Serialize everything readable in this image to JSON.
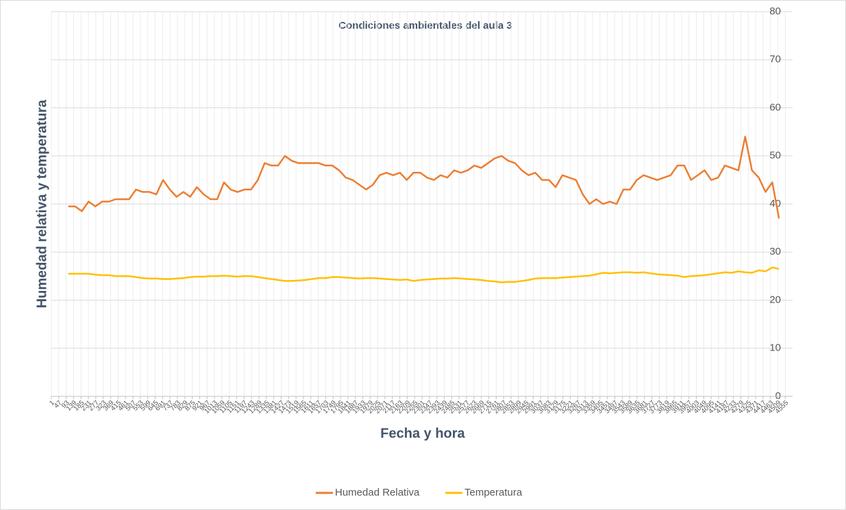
{
  "chart_data": {
    "type": "line",
    "title": "Condiciones ambientales del aula 3",
    "x_label": "Fecha y hora",
    "y_label": "Humedad relativa y temperatura",
    "x": [
      106,
      148,
      190,
      232,
      274,
      316,
      358,
      400,
      442,
      484,
      526,
      568,
      610,
      652,
      694,
      736,
      778,
      820,
      862,
      904,
      946,
      988,
      1030,
      1072,
      1114,
      1156,
      1198,
      1240,
      1282,
      1324,
      1366,
      1408,
      1450,
      1492,
      1534,
      1576,
      1618,
      1660,
      1702,
      1744,
      1786,
      1828,
      1870,
      1912,
      1954,
      1996,
      2038,
      2080,
      2122,
      2164,
      2206,
      2248,
      2290,
      2332,
      2374,
      2416,
      2458,
      2500,
      2542,
      2584,
      2626,
      2668,
      2710,
      2752,
      2794,
      2836,
      2878,
      2920,
      2962,
      3004,
      3046,
      3088,
      3130,
      3172,
      3214,
      3256,
      3298,
      3340,
      3382,
      3424,
      3466,
      3508,
      3550,
      3592,
      3634,
      3676,
      3718,
      3760,
      3802,
      3844,
      3886,
      3928,
      3970,
      4012,
      4054,
      4096,
      4138,
      4180,
      4222,
      4264,
      4306,
      4348,
      4390,
      4432,
      4474,
      4516
    ],
    "series": [
      {
        "name": "Humedad Relativa",
        "color": "#ed7d31",
        "values": [
          39.5,
          39.5,
          38.5,
          40.5,
          39.5,
          40.5,
          40.5,
          41,
          41,
          41,
          43,
          42.5,
          42.5,
          42,
          45,
          43,
          41.5,
          42.5,
          41.5,
          43.5,
          42,
          41,
          41,
          44.5,
          43,
          42.5,
          43,
          43,
          45,
          48.5,
          48,
          48,
          50,
          49,
          48.5,
          48.5,
          48.5,
          48.5,
          48,
          48,
          47,
          45.5,
          45,
          44,
          43,
          44,
          46,
          46.5,
          46,
          46.5,
          45,
          46.5,
          46.5,
          45.5,
          45,
          46,
          45.5,
          47,
          46.5,
          47,
          48,
          47.5,
          48.5,
          49.5,
          50,
          49,
          48.5,
          47,
          46,
          46.5,
          45,
          45,
          43.5,
          46,
          45.5,
          45,
          42,
          40,
          41,
          40,
          40.5,
          40,
          43,
          43,
          45,
          46,
          45.5,
          45,
          45.5,
          46,
          48,
          48,
          45,
          46,
          47,
          45,
          45.5,
          48,
          47.5,
          47,
          54,
          47,
          45.5,
          42.5,
          44.5,
          37
        ]
      },
      {
        "name": "Temperatura",
        "color": "#ffc000",
        "values": [
          25.5,
          25.5,
          25.5,
          25.5,
          25.3,
          25.2,
          25.2,
          25,
          25,
          25,
          24.8,
          24.6,
          24.5,
          24.5,
          24.4,
          24.4,
          24.5,
          24.6,
          24.8,
          24.9,
          24.9,
          25,
          25,
          25.1,
          25,
          24.9,
          25,
          25,
          24.8,
          24.6,
          24.4,
          24.2,
          24,
          24,
          24.1,
          24.2,
          24.4,
          24.6,
          24.6,
          24.8,
          24.8,
          24.7,
          24.6,
          24.5,
          24.6,
          24.6,
          24.5,
          24.4,
          24.3,
          24.2,
          24.3,
          24,
          24.2,
          24.3,
          24.4,
          24.5,
          24.5,
          24.6,
          24.5,
          24.4,
          24.3,
          24.2,
          24,
          23.9,
          23.7,
          23.8,
          23.8,
          24,
          24.2,
          24.5,
          24.6,
          24.6,
          24.6,
          24.7,
          24.8,
          24.9,
          25,
          25.1,
          25.4,
          25.7,
          25.6,
          25.7,
          25.8,
          25.8,
          25.7,
          25.8,
          25.6,
          25.4,
          25.3,
          25.2,
          25.1,
          24.8,
          25,
          25.1,
          25.2,
          25.4,
          25.6,
          25.8,
          25.7,
          26,
          25.8,
          25.7,
          26.2,
          26,
          26.8,
          26.5
        ]
      }
    ],
    "xlim": [
      1,
      4600
    ],
    "xticks": [
      1,
      47,
      93,
      139,
      185,
      231,
      277,
      323,
      369,
      415,
      461,
      507,
      553,
      599,
      645,
      691,
      737,
      783,
      829,
      875,
      921,
      967,
      1013,
      1059,
      1105,
      1151,
      1197,
      1243,
      1289,
      1335,
      1381,
      1427,
      1473,
      1519,
      1565,
      1611,
      1657,
      1703,
      1749,
      1795,
      1841,
      1887,
      1933,
      1979,
      2025,
      2071,
      2117,
      2163,
      2209,
      2255,
      2301,
      2347,
      2393,
      2439,
      2485,
      2531,
      2577,
      2623,
      2669,
      2715,
      2761,
      2807,
      2853,
      2899,
      2945,
      2991,
      3037,
      3083,
      3129,
      3175,
      3221,
      3267,
      3313,
      3359,
      3405,
      3451,
      3497,
      3543,
      3589,
      3635,
      3681,
      3727,
      3773,
      3819,
      3865,
      3911,
      3957,
      4003,
      4049,
      4095,
      4141,
      4187,
      4233,
      4279,
      4325,
      4371,
      4417,
      4463,
      4509,
      4555
    ],
    "ylim": [
      0,
      80
    ],
    "yticks": [
      0,
      10,
      20,
      30,
      40,
      50,
      60,
      70,
      80
    ],
    "grid": true,
    "legend": "bottom"
  }
}
